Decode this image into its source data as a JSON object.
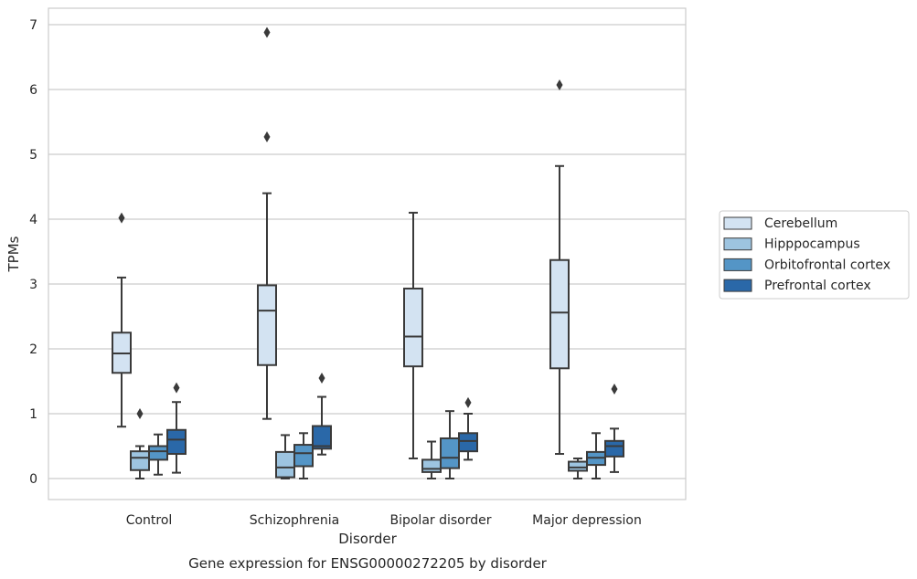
{
  "chart_data": {
    "type": "boxplot",
    "title": "Gene expression for ENSG00000272205 by disorder",
    "xlabel": "Disorder",
    "ylabel": "TPMs",
    "ylim": [
      -0.33,
      7.22
    ],
    "yticks": [
      "0",
      "1",
      "2",
      "3",
      "4",
      "5",
      "6",
      "7"
    ],
    "grid": true,
    "legend_position": "right",
    "categories": [
      "Control",
      "Schizophrenia",
      "Bipolar disorder",
      "Major depression"
    ],
    "series": [
      {
        "name": "Cerebellum",
        "color": "#d3e3f2",
        "boxes": [
          {
            "whislo": 0.8,
            "q1": 1.63,
            "med": 1.93,
            "q3": 2.25,
            "whishi": 3.1,
            "fliers": [
              4.02
            ]
          },
          {
            "whislo": 0.92,
            "q1": 1.75,
            "med": 2.59,
            "q3": 2.98,
            "whishi": 4.4,
            "fliers": [
              5.27,
              6.88
            ]
          },
          {
            "whislo": 0.31,
            "q1": 1.73,
            "med": 2.19,
            "q3": 2.93,
            "whishi": 4.1,
            "fliers": []
          },
          {
            "whislo": 0.38,
            "q1": 1.7,
            "med": 2.56,
            "q3": 3.37,
            "whishi": 4.82,
            "fliers": [
              6.07
            ]
          }
        ]
      },
      {
        "name": "Hipppocampus",
        "color": "#9dc4e0",
        "boxes": [
          {
            "whislo": 0.0,
            "q1": 0.13,
            "med": 0.32,
            "q3": 0.42,
            "whishi": 0.5,
            "fliers": [
              1.0
            ]
          },
          {
            "whislo": 0.0,
            "q1": 0.02,
            "med": 0.17,
            "q3": 0.41,
            "whishi": 0.67,
            "fliers": []
          },
          {
            "whislo": 0.0,
            "q1": 0.1,
            "med": 0.15,
            "q3": 0.29,
            "whishi": 0.57,
            "fliers": []
          },
          {
            "whislo": 0.0,
            "q1": 0.12,
            "med": 0.17,
            "q3": 0.26,
            "whishi": 0.31,
            "fliers": []
          }
        ]
      },
      {
        "name": "Orbitofrontal cortex",
        "color": "#5495c6",
        "boxes": [
          {
            "whislo": 0.06,
            "q1": 0.29,
            "med": 0.42,
            "q3": 0.5,
            "whishi": 0.68,
            "fliers": []
          },
          {
            "whislo": 0.0,
            "q1": 0.19,
            "med": 0.39,
            "q3": 0.52,
            "whishi": 0.7,
            "fliers": []
          },
          {
            "whislo": 0.0,
            "q1": 0.16,
            "med": 0.32,
            "q3": 0.62,
            "whishi": 1.04,
            "fliers": []
          },
          {
            "whislo": 0.0,
            "q1": 0.21,
            "med": 0.32,
            "q3": 0.41,
            "whishi": 0.7,
            "fliers": []
          }
        ]
      },
      {
        "name": "Prefrontal cortex",
        "color": "#2a68a8",
        "boxes": [
          {
            "whislo": 0.09,
            "q1": 0.38,
            "med": 0.6,
            "q3": 0.75,
            "whishi": 1.18,
            "fliers": [
              1.4
            ]
          },
          {
            "whislo": 0.37,
            "q1": 0.46,
            "med": 0.5,
            "q3": 0.81,
            "whishi": 1.26,
            "fliers": [
              1.55
            ]
          },
          {
            "whislo": 0.29,
            "q1": 0.42,
            "med": 0.58,
            "q3": 0.7,
            "whishi": 1.0,
            "fliers": [
              1.17
            ]
          },
          {
            "whislo": 0.1,
            "q1": 0.34,
            "med": 0.5,
            "q3": 0.58,
            "whishi": 0.77,
            "fliers": [
              1.38
            ]
          }
        ]
      }
    ]
  },
  "colors": {
    "grid": "#cccccc",
    "frame": "#cccccc",
    "line": "#3a3a3a"
  }
}
